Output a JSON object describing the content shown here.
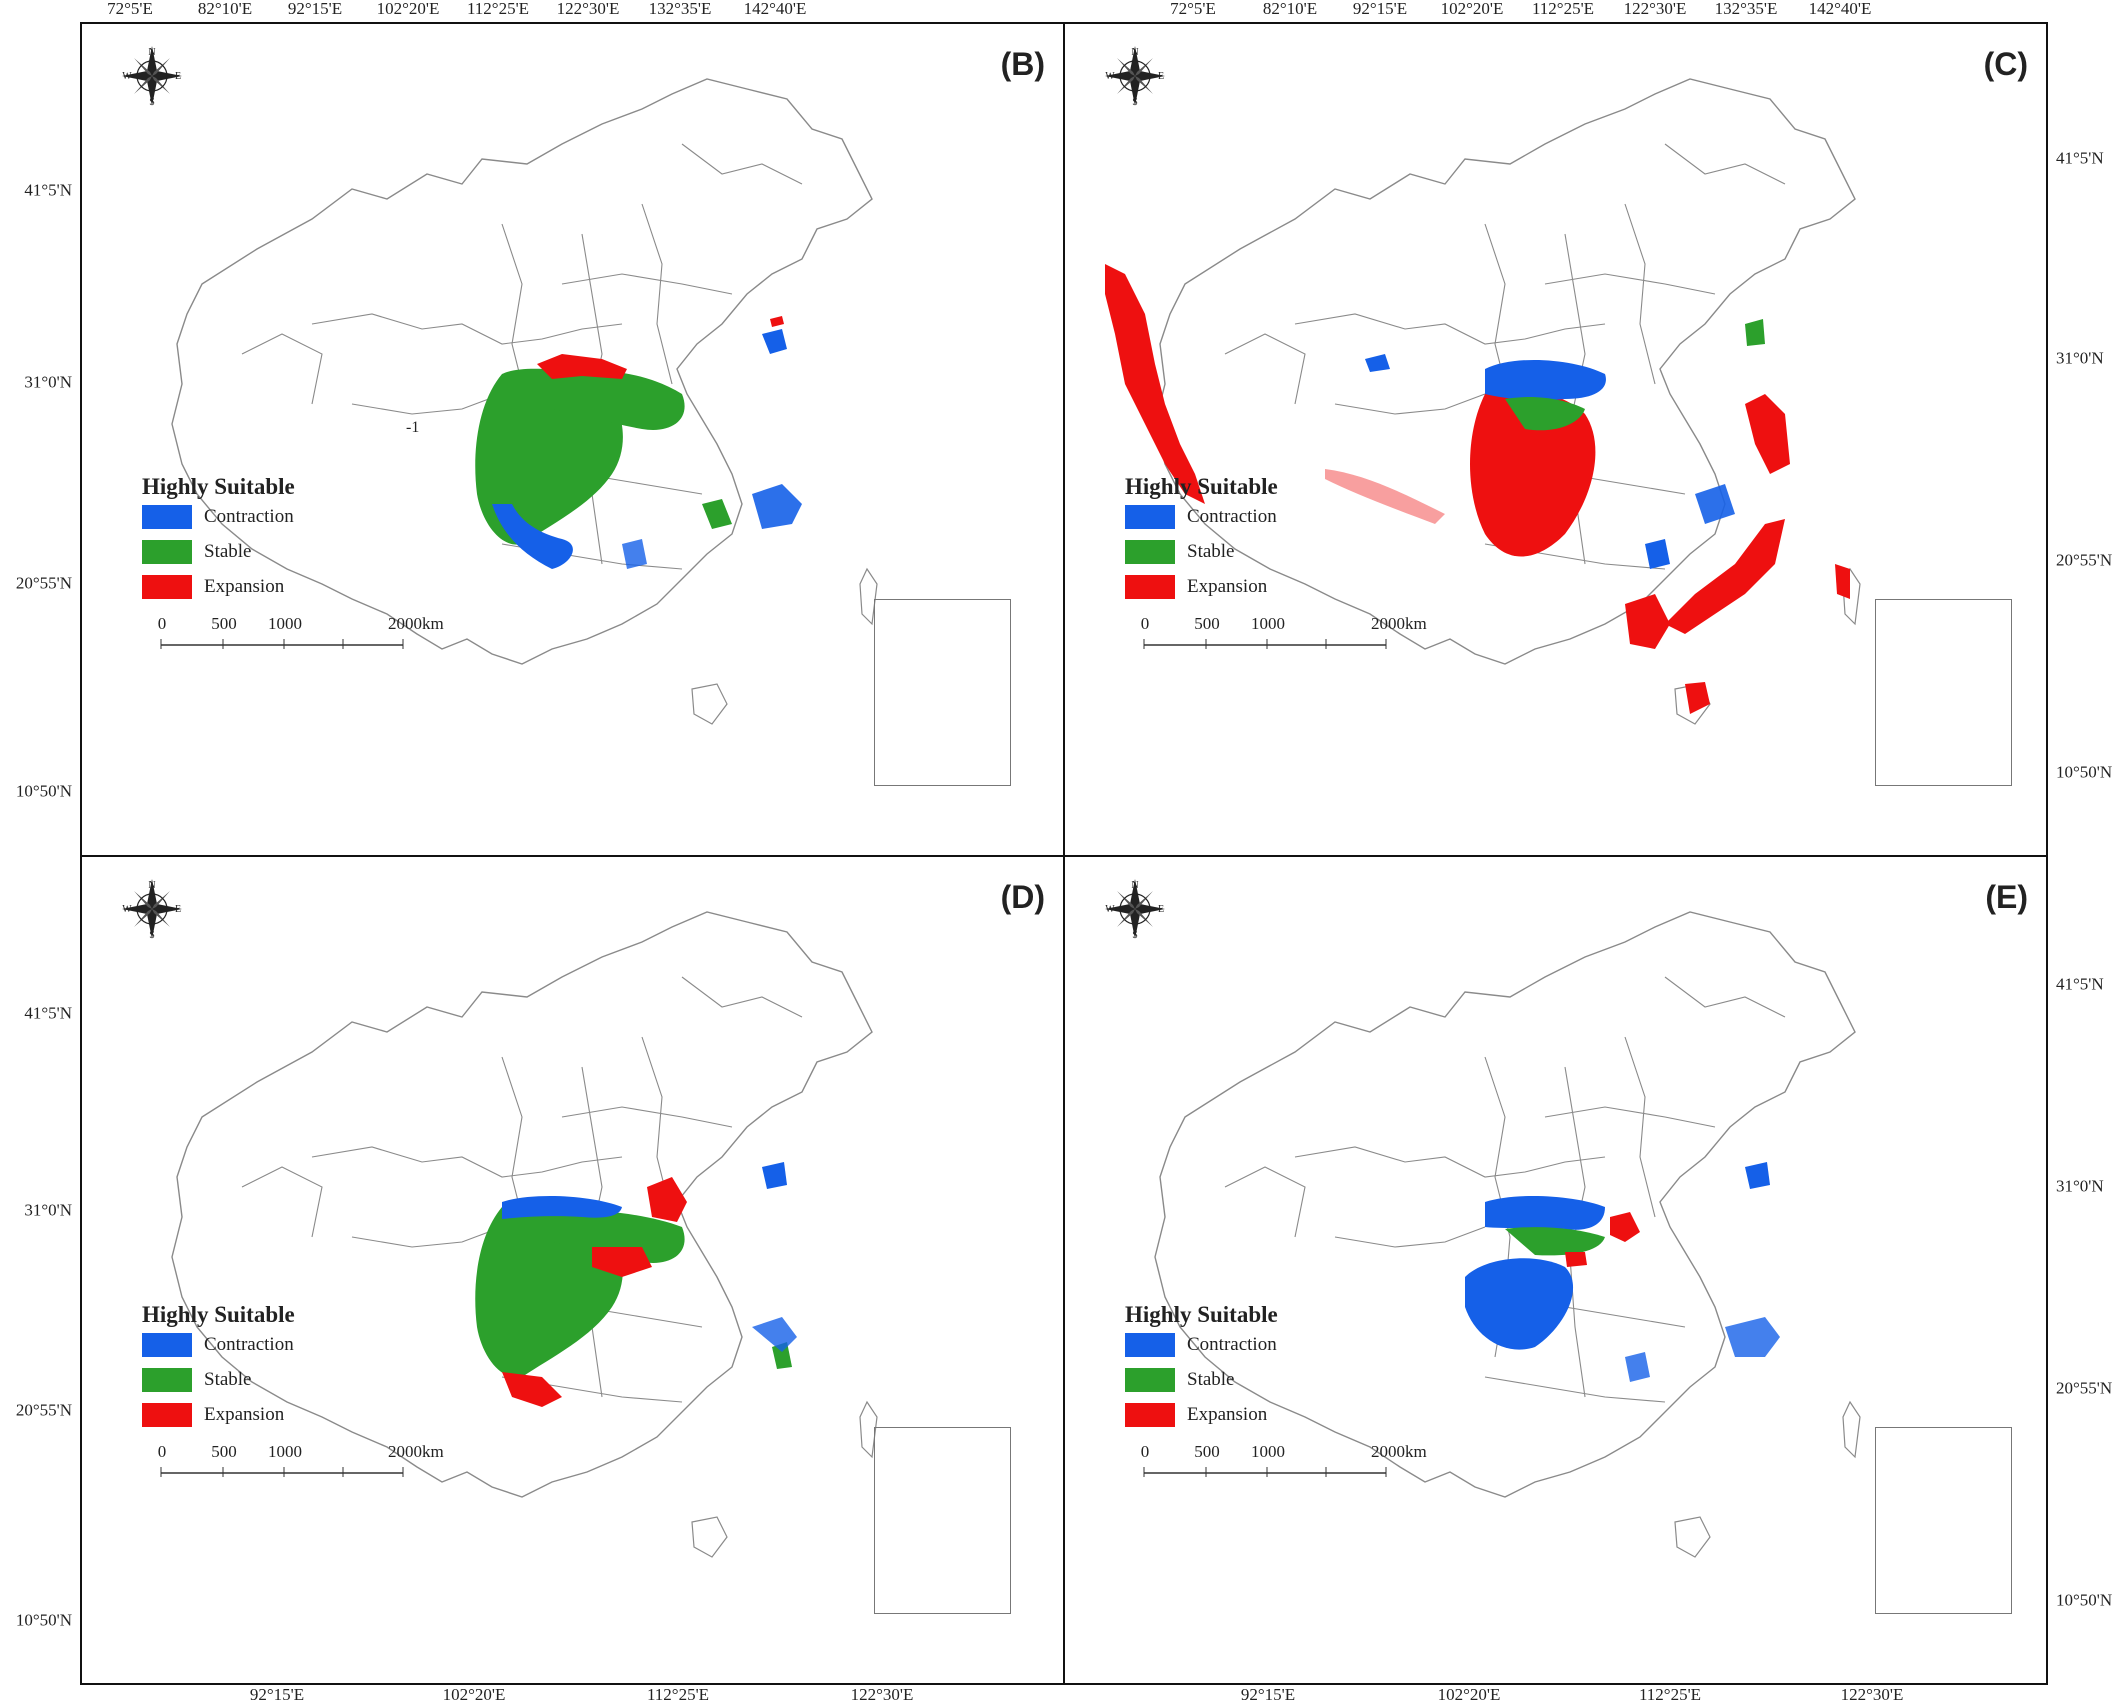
{
  "top_axis_labels": [
    "72°5'E",
    "82°10'E",
    "92°15'E",
    "102°20'E",
    "112°25'E",
    "122°30'E",
    "132°35'E",
    "142°40'E"
  ],
  "bottom_axis_labels": [
    "92°15'E",
    "102°20'E",
    "112°25'E",
    "122°30'E"
  ],
  "lat_labels": [
    "41°5'N",
    "31°0'N",
    "20°55'N",
    "10°50'N"
  ],
  "colors": {
    "contraction": "#1560e8",
    "stable": "#2ca02c",
    "expansion": "#ee1010",
    "boundary": "#8a8a8a"
  },
  "compass": {
    "n": "N",
    "s": "S",
    "e": "E",
    "w": "W"
  },
  "legend": {
    "title": "Highly Suitable",
    "items": [
      "Contraction",
      "Stable",
      "Expansion"
    ]
  },
  "scale_bar": {
    "ticks": [
      "0",
      "500",
      "1000",
      "2000"
    ],
    "unit": "km"
  },
  "panels": [
    {
      "letter": "(B)",
      "stray_label": "-1"
    },
    {
      "letter": "(C)"
    },
    {
      "letter": "(D)"
    },
    {
      "letter": "(E)"
    }
  ]
}
